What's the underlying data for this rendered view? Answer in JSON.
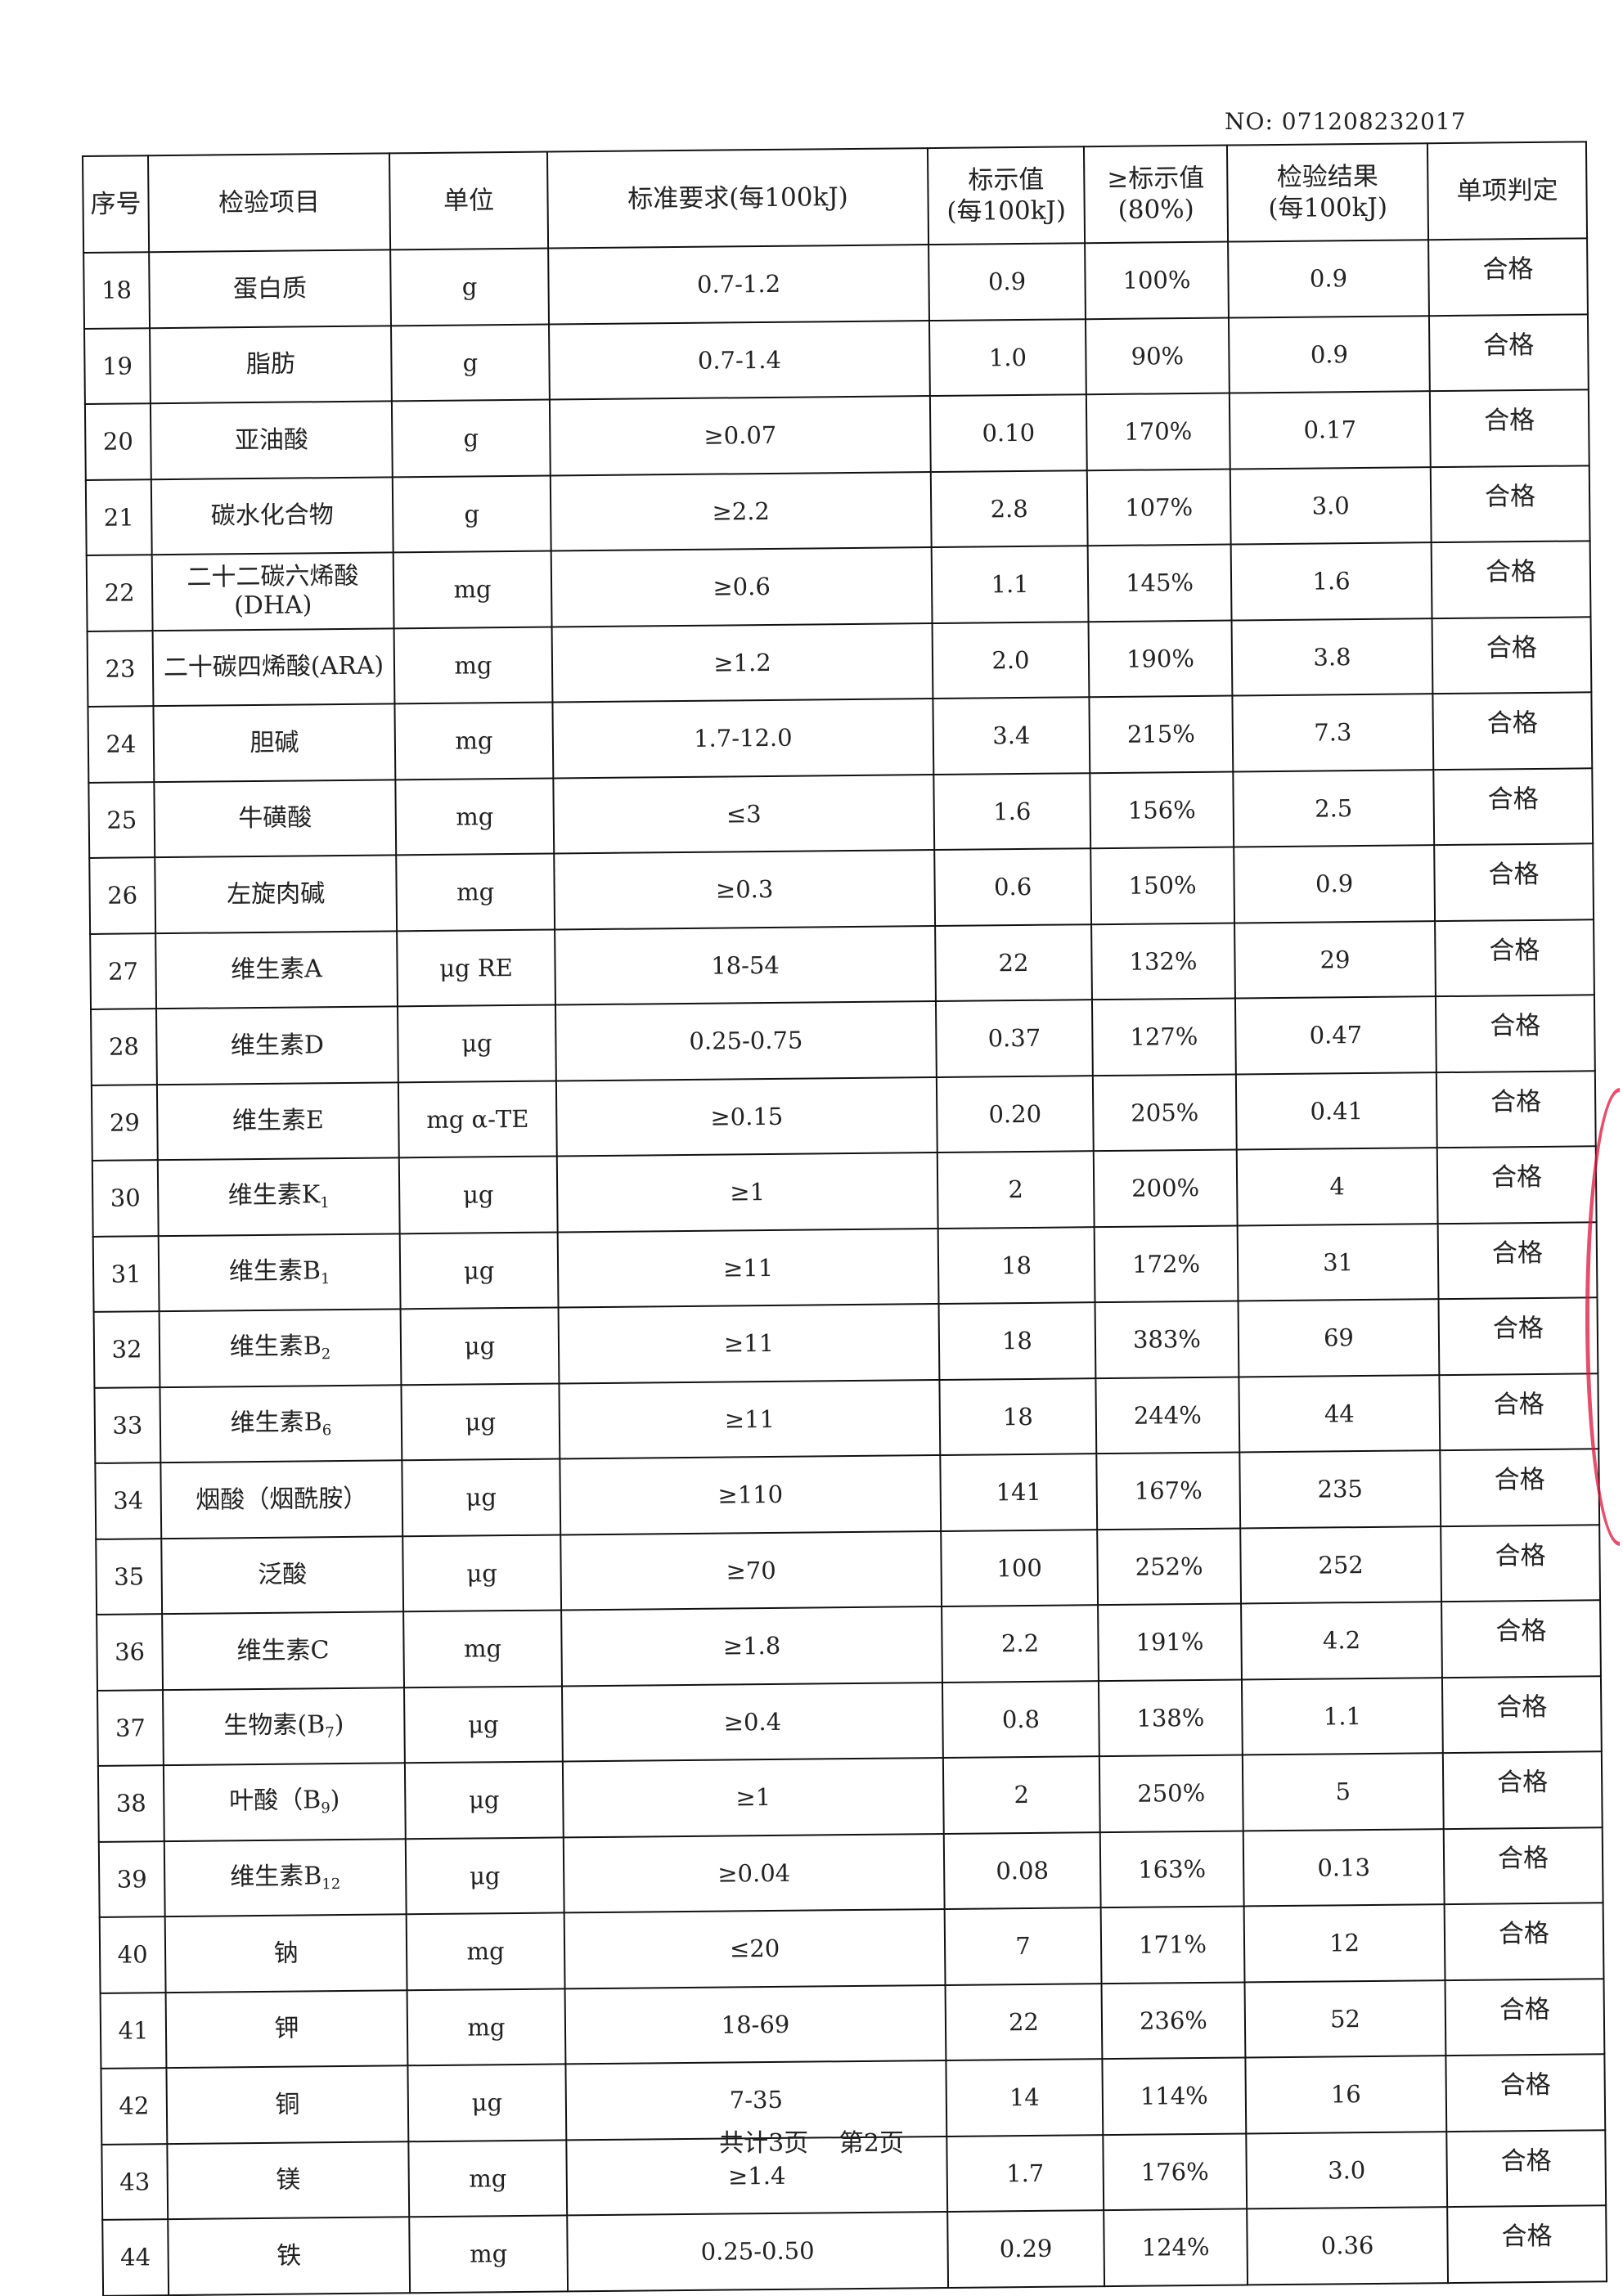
{
  "document_no": "NO: 071208232017",
  "headers": [
    "序号",
    "检验项目",
    "单位",
    "标准要求(每100kJ)",
    "标示值\n(每100kJ)",
    "≥标示值\n(80%)",
    "检验结果\n(每100kJ)",
    "单项判定"
  ],
  "rows": [
    {
      "no": "18",
      "item": "蛋白质",
      "sub": "",
      "unit": "g",
      "std": "0.7-1.2",
      "label": "0.9",
      "pct": "100%",
      "result": "0.9",
      "verdict": "合格"
    },
    {
      "no": "19",
      "item": "脂肪",
      "sub": "",
      "unit": "g",
      "std": "0.7-1.4",
      "label": "1.0",
      "pct": "90%",
      "result": "0.9",
      "verdict": "合格"
    },
    {
      "no": "20",
      "item": "亚油酸",
      "sub": "",
      "unit": "g",
      "std": "≥0.07",
      "label": "0.10",
      "pct": "170%",
      "result": "0.17",
      "verdict": "合格"
    },
    {
      "no": "21",
      "item": "碳水化合物",
      "sub": "",
      "unit": "g",
      "std": "≥2.2",
      "label": "2.8",
      "pct": "107%",
      "result": "3.0",
      "verdict": "合格"
    },
    {
      "no": "22",
      "item": "二十二碳六烯酸\n(DHA)",
      "sub": "",
      "unit": "mg",
      "std": "≥0.6",
      "label": "1.1",
      "pct": "145%",
      "result": "1.6",
      "verdict": "合格"
    },
    {
      "no": "23",
      "item": "二十碳四烯酸(ARA)",
      "sub": "",
      "unit": "mg",
      "std": "≥1.2",
      "label": "2.0",
      "pct": "190%",
      "result": "3.8",
      "verdict": "合格"
    },
    {
      "no": "24",
      "item": "胆碱",
      "sub": "",
      "unit": "mg",
      "std": "1.7-12.0",
      "label": "3.4",
      "pct": "215%",
      "result": "7.3",
      "verdict": "合格"
    },
    {
      "no": "25",
      "item": "牛磺酸",
      "sub": "",
      "unit": "mg",
      "std": "≤3",
      "label": "1.6",
      "pct": "156%",
      "result": "2.5",
      "verdict": "合格"
    },
    {
      "no": "26",
      "item": "左旋肉碱",
      "sub": "",
      "unit": "mg",
      "std": "≥0.3",
      "label": "0.6",
      "pct": "150%",
      "result": "0.9",
      "verdict": "合格"
    },
    {
      "no": "27",
      "item": "维生素A",
      "sub": "",
      "unit": "μg RE",
      "std": "18-54",
      "label": "22",
      "pct": "132%",
      "result": "29",
      "verdict": "合格"
    },
    {
      "no": "28",
      "item": "维生素D",
      "sub": "",
      "unit": "μg",
      "std": "0.25-0.75",
      "label": "0.37",
      "pct": "127%",
      "result": "0.47",
      "verdict": "合格"
    },
    {
      "no": "29",
      "item": "维生素E",
      "sub": "",
      "unit": "mg α-TE",
      "std": "≥0.15",
      "label": "0.20",
      "pct": "205%",
      "result": "0.41",
      "verdict": "合格"
    },
    {
      "no": "30",
      "item": "维生素K",
      "sub": "1",
      "unit": "μg",
      "std": "≥1",
      "label": "2",
      "pct": "200%",
      "result": "4",
      "verdict": "合格"
    },
    {
      "no": "31",
      "item": "维生素B",
      "sub": "1",
      "unit": "μg",
      "std": "≥11",
      "label": "18",
      "pct": "172%",
      "result": "31",
      "verdict": "合格"
    },
    {
      "no": "32",
      "item": "维生素B",
      "sub": "2",
      "unit": "μg",
      "std": "≥11",
      "label": "18",
      "pct": "383%",
      "result": "69",
      "verdict": "合格"
    },
    {
      "no": "33",
      "item": "维生素B",
      "sub": "6",
      "unit": "μg",
      "std": "≥11",
      "label": "18",
      "pct": "244%",
      "result": "44",
      "verdict": "合格"
    },
    {
      "no": "34",
      "item": "烟酸（烟酰胺）",
      "sub": "",
      "unit": "μg",
      "std": "≥110",
      "label": "141",
      "pct": "167%",
      "result": "235",
      "verdict": "合格"
    },
    {
      "no": "35",
      "item": "泛酸",
      "sub": "",
      "unit": "μg",
      "std": "≥70",
      "label": "100",
      "pct": "252%",
      "result": "252",
      "verdict": "合格"
    },
    {
      "no": "36",
      "item": "维生素C",
      "sub": "",
      "unit": "mg",
      "std": "≥1.8",
      "label": "2.2",
      "pct": "191%",
      "result": "4.2",
      "verdict": "合格"
    },
    {
      "no": "37",
      "item": "生物素(B",
      "sub": "7",
      "after": ")",
      "unit": "μg",
      "std": "≥0.4",
      "label": "0.8",
      "pct": "138%",
      "result": "1.1",
      "verdict": "合格"
    },
    {
      "no": "38",
      "item": "叶酸（B",
      "sub": "9",
      "after": ")",
      "unit": "μg",
      "std": "≥1",
      "label": "2",
      "pct": "250%",
      "result": "5",
      "verdict": "合格"
    },
    {
      "no": "39",
      "item": "维生素B",
      "sub": "12",
      "unit": "μg",
      "std": "≥0.04",
      "label": "0.08",
      "pct": "163%",
      "result": "0.13",
      "verdict": "合格"
    },
    {
      "no": "40",
      "item": "钠",
      "sub": "",
      "unit": "mg",
      "std": "≤20",
      "label": "7",
      "pct": "171%",
      "result": "12",
      "verdict": "合格"
    },
    {
      "no": "41",
      "item": "钾",
      "sub": "",
      "unit": "mg",
      "std": "18-69",
      "label": "22",
      "pct": "236%",
      "result": "52",
      "verdict": "合格"
    },
    {
      "no": "42",
      "item": "铜",
      "sub": "",
      "unit": "μg",
      "std": "7-35",
      "label": "14",
      "pct": "114%",
      "result": "16",
      "verdict": "合格"
    },
    {
      "no": "43",
      "item": "镁",
      "sub": "",
      "unit": "mg",
      "std": "≥1.4",
      "label": "1.7",
      "pct": "176%",
      "result": "3.0",
      "verdict": "合格"
    },
    {
      "no": "44",
      "item": "铁",
      "sub": "",
      "unit": "mg",
      "std": "0.25-0.50",
      "label": "0.29",
      "pct": "124%",
      "result": "0.36",
      "verdict": "合格"
    }
  ],
  "footer": {
    "total_pages": "共计3页",
    "current_page": "第2页"
  },
  "colors": {
    "ink": "#222222",
    "stamp": "#dc143c"
  }
}
